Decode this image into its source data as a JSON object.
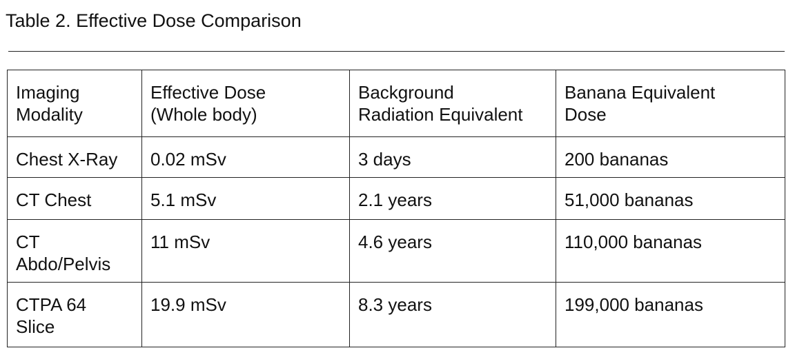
{
  "header": {
    "title": "Table 2. Effective Dose Comparison"
  },
  "table": {
    "columns": [
      "Imaging\nModality",
      "Effective Dose\n(Whole body)",
      "Background\nRadiation Equivalent",
      "Banana Equivalent\nDose"
    ],
    "rows": [
      [
        "Chest X-Ray",
        "0.02 mSv",
        "3 days",
        "200 bananas"
      ],
      [
        "CT Chest",
        "5.1 mSv",
        "2.1 years",
        "51,000 bananas"
      ],
      [
        "CT\nAbdo/Pelvis",
        "11 mSv",
        "4.6 years",
        "110,000 bananas"
      ],
      [
        "CTPA 64\nSlice",
        "19.9 mSv",
        "8.3 years",
        "199,000 bananas"
      ]
    ]
  }
}
